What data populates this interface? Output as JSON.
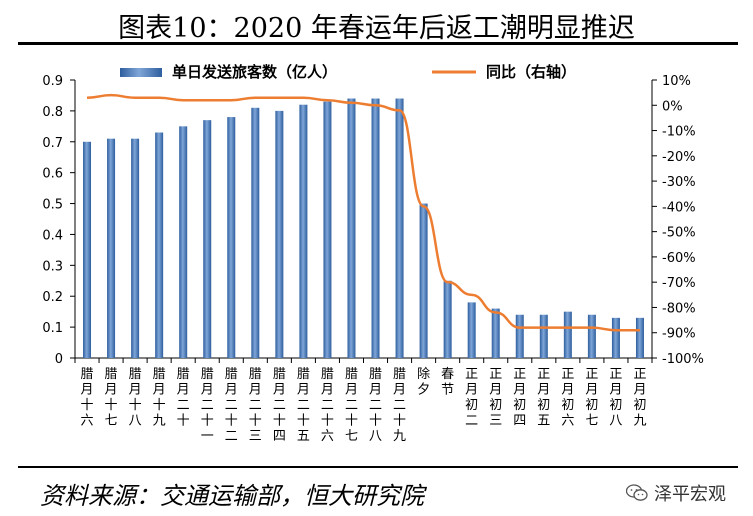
{
  "title": "图表10：2020 年春运年后返工潮明显推迟",
  "source": "资料来源：交通运输部，恒大研究院",
  "brand": {
    "text": "泽平宏观",
    "icon": "wechat-icon"
  },
  "chart_data": {
    "type": "bar+line",
    "title": "",
    "categories": [
      "腊月十六",
      "腊月十七",
      "腊月十八",
      "腊月十九",
      "腊月二十",
      "腊月二十一",
      "腊月二十二",
      "腊月二十三",
      "腊月二十四",
      "腊月二十五",
      "腊月二十六",
      "腊月二十七",
      "腊月二十八",
      "腊月二十九",
      "除夕",
      "春节",
      "正月初二",
      "正月初三",
      "正月初四",
      "正月初五",
      "正月初六",
      "正月初七",
      "正月初八",
      "正月初九"
    ],
    "category_labels": [
      [
        "腊",
        "月",
        "十",
        "六"
      ],
      [
        "腊",
        "月",
        "十",
        "七"
      ],
      [
        "腊",
        "月",
        "十",
        "八"
      ],
      [
        "腊",
        "月",
        "十",
        "九"
      ],
      [
        "腊",
        "月",
        "二",
        "十"
      ],
      [
        "腊",
        "月",
        "二",
        "十",
        "一"
      ],
      [
        "腊",
        "月",
        "二",
        "十",
        "二"
      ],
      [
        "腊",
        "月",
        "二",
        "十",
        "三"
      ],
      [
        "腊",
        "月",
        "二",
        "十",
        "四"
      ],
      [
        "腊",
        "月",
        "二",
        "十",
        "五"
      ],
      [
        "腊",
        "月",
        "二",
        "十",
        "六"
      ],
      [
        "腊",
        "月",
        "二",
        "十",
        "七"
      ],
      [
        "腊",
        "月",
        "二",
        "十",
        "八"
      ],
      [
        "腊",
        "月",
        "二",
        "十",
        "九"
      ],
      [
        "除",
        "夕"
      ],
      [
        "春",
        "节"
      ],
      [
        "正",
        "月",
        "初",
        "二"
      ],
      [
        "正",
        "月",
        "初",
        "三"
      ],
      [
        "正",
        "月",
        "初",
        "四"
      ],
      [
        "正",
        "月",
        "初",
        "五"
      ],
      [
        "正",
        "月",
        "初",
        "六"
      ],
      [
        "正",
        "月",
        "初",
        "七"
      ],
      [
        "正",
        "月",
        "初",
        "八"
      ],
      [
        "正",
        "月",
        "初",
        "九"
      ]
    ],
    "series": [
      {
        "name": "单日发送旅客数（亿人）",
        "type": "bar",
        "axis": "left",
        "color": "#3E72B8",
        "values": [
          0.7,
          0.71,
          0.71,
          0.73,
          0.75,
          0.77,
          0.78,
          0.81,
          0.8,
          0.82,
          0.83,
          0.84,
          0.84,
          0.84,
          0.5,
          0.25,
          0.18,
          0.16,
          0.14,
          0.14,
          0.15,
          0.14,
          0.13,
          0.13
        ]
      },
      {
        "name": "同比（右轴）",
        "type": "line",
        "axis": "right",
        "color": "#ED7D31",
        "values": [
          3,
          4,
          3,
          3,
          2,
          2,
          2,
          3,
          3,
          3,
          2,
          1,
          0,
          -2,
          -40,
          -70,
          -75,
          -82,
          -88,
          -88,
          -88,
          -88,
          -89,
          -89
        ]
      }
    ],
    "y_left": {
      "min": 0,
      "max": 0.9,
      "step": 0.1,
      "ticks": [
        "0",
        "0.1",
        "0.2",
        "0.3",
        "0.4",
        "0.5",
        "0.6",
        "0.7",
        "0.8",
        "0.9"
      ]
    },
    "y_right": {
      "min": -100,
      "max": 10,
      "step": 10,
      "ticks": [
        "-100%",
        "-90%",
        "-80%",
        "-70%",
        "-60%",
        "-50%",
        "-40%",
        "-30%",
        "-20%",
        "-10%",
        "0%",
        "10%"
      ]
    },
    "grid": false,
    "legend_position": "top"
  }
}
